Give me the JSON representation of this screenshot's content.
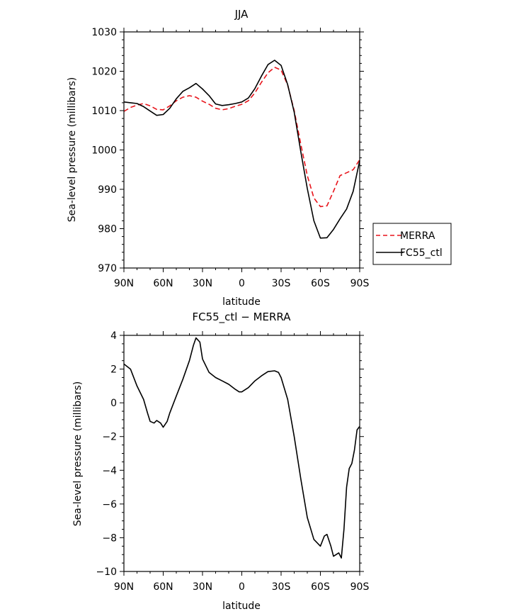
{
  "chart_data": [
    {
      "type": "line",
      "title": "JJA",
      "xlabel": "latitude",
      "ylabel": "Sea-level pressure (millibars)",
      "xlim": [
        90,
        -90
      ],
      "ylim": [
        970,
        1030
      ],
      "xticks": [
        90,
        60,
        30,
        0,
        -30,
        -60,
        -90
      ],
      "xtick_labels": [
        "90N",
        "60N",
        "30N",
        "0",
        "30S",
        "60S",
        "90S"
      ],
      "yticks": [
        970,
        980,
        990,
        1000,
        1010,
        1020,
        1030
      ],
      "ytick_labels": [
        "970",
        "980",
        "990",
        "1000",
        "1010",
        "1020",
        "1030"
      ],
      "grid": false,
      "legend_position": "right",
      "series": [
        {
          "name": "MERRA",
          "color": "#e8141b",
          "dash": "dashed",
          "x": [
            90,
            85,
            80,
            75,
            70,
            65,
            60,
            55,
            50,
            45,
            40,
            35,
            30,
            25,
            20,
            15,
            10,
            5,
            0,
            -5,
            -10,
            -15,
            -20,
            -25,
            -30,
            -35,
            -40,
            -45,
            -50,
            -55,
            -60,
            -65,
            -70,
            -75,
            -80,
            -85,
            -90
          ],
          "y": [
            1009.8,
            1010.8,
            1011.4,
            1011.8,
            1011.2,
            1010.3,
            1010.2,
            1011.2,
            1012.5,
            1013.4,
            1013.8,
            1013.4,
            1012.4,
            1011.6,
            1010.6,
            1010.2,
            1010.5,
            1011.1,
            1011.6,
            1012.5,
            1014.5,
            1017.2,
            1019.6,
            1021.0,
            1020.3,
            1016.5,
            1010.0,
            1001.5,
            993.5,
            987.8,
            985.6,
            985.8,
            989.5,
            993.5,
            994.2,
            995.0,
            997.5
          ]
        },
        {
          "name": "FC55_ctl",
          "color": "#000000",
          "dash": "solid",
          "x": [
            90,
            85,
            80,
            75,
            70,
            65,
            60,
            55,
            50,
            45,
            40,
            35,
            30,
            25,
            20,
            15,
            10,
            5,
            0,
            -5,
            -10,
            -15,
            -20,
            -25,
            -30,
            -35,
            -40,
            -45,
            -50,
            -55,
            -60,
            -65,
            -70,
            -75,
            -80,
            -85,
            -90
          ],
          "y": [
            1012.2,
            1012.0,
            1011.8,
            1011.0,
            1009.9,
            1008.8,
            1009.0,
            1010.6,
            1013.0,
            1014.9,
            1015.8,
            1016.9,
            1015.5,
            1013.8,
            1011.7,
            1011.3,
            1011.5,
            1011.8,
            1012.2,
            1013.2,
            1015.6,
            1018.8,
            1021.7,
            1022.8,
            1021.5,
            1016.6,
            1009.6,
            999.6,
            990.2,
            982.0,
            977.6,
            977.7,
            979.8,
            982.5,
            985.0,
            989.5,
            997.3
          ]
        }
      ]
    },
    {
      "type": "line",
      "title": "FC55_ctl − MERRA",
      "xlabel": "latitude",
      "ylabel": "Sea-level pressure (millibars)",
      "xlim": [
        90,
        -90
      ],
      "ylim": [
        -10,
        4
      ],
      "xticks": [
        90,
        60,
        30,
        0,
        -30,
        -60,
        -90
      ],
      "xtick_labels": [
        "90N",
        "60N",
        "30N",
        "0",
        "30S",
        "60S",
        "90S"
      ],
      "yticks": [
        -10,
        -8,
        -6,
        -4,
        -2,
        0,
        2,
        4
      ],
      "ytick_labels": [
        "−10",
        "−8",
        "−6",
        "−4",
        "−2",
        "0",
        "2",
        "4"
      ],
      "grid": false,
      "series": [
        {
          "color": "#000000",
          "dash": "solid",
          "x": [
            90,
            85,
            80,
            75,
            72,
            70,
            67,
            65,
            62,
            60,
            57,
            55,
            50,
            45,
            40,
            37,
            35,
            32,
            30,
            25,
            20,
            15,
            10,
            5,
            2,
            0,
            -5,
            -10,
            -15,
            -20,
            -25,
            -28,
            -30,
            -35,
            -40,
            -45,
            -50,
            -55,
            -60,
            -63,
            -65,
            -68,
            -70,
            -72,
            -74,
            -76,
            -78,
            -80,
            -82,
            -84,
            -86,
            -88,
            -90
          ],
          "y": [
            2.3,
            2.0,
            1.0,
            0.2,
            -0.6,
            -1.1,
            -1.2,
            -1.05,
            -1.2,
            -1.45,
            -1.1,
            -0.6,
            0.4,
            1.4,
            2.5,
            3.4,
            3.85,
            3.6,
            2.6,
            1.8,
            1.5,
            1.3,
            1.1,
            0.8,
            0.65,
            0.65,
            0.9,
            1.3,
            1.6,
            1.85,
            1.9,
            1.8,
            1.5,
            0.2,
            -2.0,
            -4.5,
            -6.8,
            -8.1,
            -8.5,
            -7.9,
            -7.8,
            -8.5,
            -9.1,
            -9.0,
            -8.9,
            -9.2,
            -7.5,
            -5.0,
            -3.9,
            -3.6,
            -2.8,
            -1.6,
            -1.4
          ]
        }
      ]
    }
  ]
}
